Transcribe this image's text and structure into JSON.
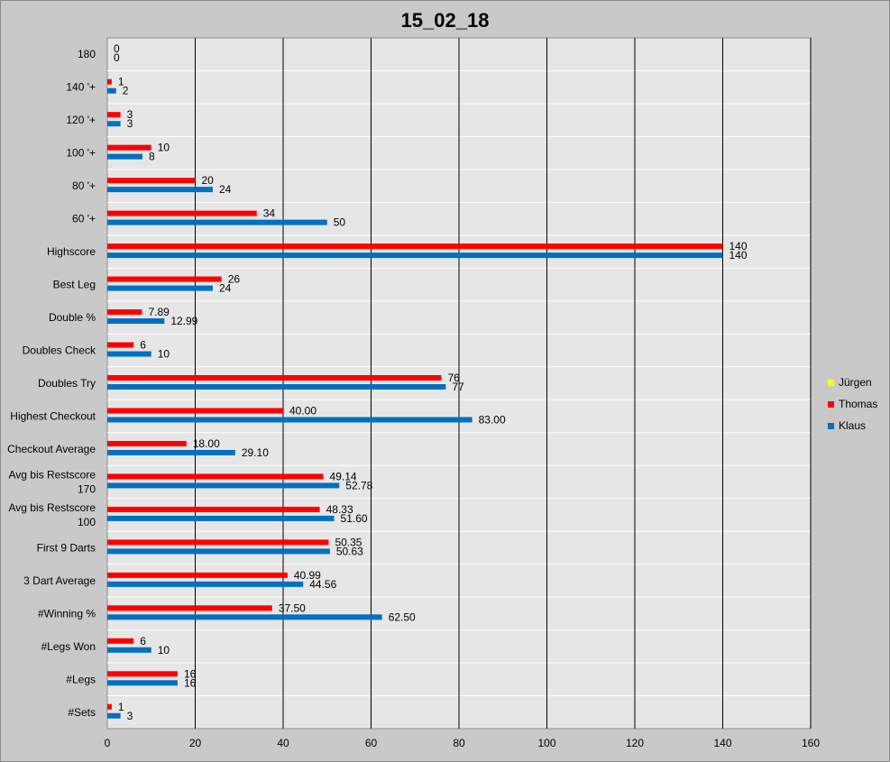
{
  "chart_data": {
    "type": "bar",
    "orientation": "horizontal",
    "title": "15_02_18",
    "categories": [
      "180",
      "140 '+",
      "120 '+",
      "100 '+",
      "80 '+",
      "60 '+",
      "Highscore",
      "Best Leg",
      "Double %",
      "Doubles Check",
      "Doubles Try",
      "Highest Checkout",
      "Checkout Average",
      "Avg bis Restscore 170",
      "Avg bis Restscore 100",
      "First 9 Darts",
      "3 Dart Average",
      "#Winning %",
      "#Legs Won",
      "#Legs",
      "#Sets"
    ],
    "series": [
      {
        "name": "Jürgen",
        "color": "#ffff00",
        "values": [
          null,
          null,
          null,
          null,
          null,
          null,
          null,
          null,
          null,
          null,
          null,
          null,
          null,
          null,
          null,
          null,
          null,
          null,
          null,
          null,
          null
        ],
        "labels": []
      },
      {
        "name": "Thomas",
        "color": "#ff0000",
        "values": [
          0,
          1,
          3,
          10,
          20,
          34,
          140,
          26,
          7.89,
          6,
          76,
          40,
          18,
          49.14,
          48.33,
          50.35,
          40.99,
          37.5,
          6,
          16,
          1
        ],
        "labels": [
          "0",
          "1",
          "3",
          "10",
          "20",
          "34",
          "140",
          "26",
          "7.89",
          "6",
          "76",
          "40.00",
          "18.00",
          "49.14",
          "48.33",
          "50.35",
          "40.99",
          "37.50",
          "6",
          "16",
          "1"
        ]
      },
      {
        "name": "Klaus",
        "color": "#0070c0",
        "values": [
          0,
          2,
          3,
          8,
          24,
          50,
          140,
          24,
          12.99,
          10,
          77,
          83,
          29.1,
          52.78,
          51.6,
          50.63,
          44.56,
          62.5,
          10,
          16,
          3
        ],
        "labels": [
          "0",
          "2",
          "3",
          "8",
          "24",
          "50",
          "140",
          "24",
          "12.99",
          "10",
          "77",
          "83.00",
          "29.10",
          "52.78",
          "51.60",
          "50.63",
          "44.56",
          "62.50",
          "10",
          "16",
          "3"
        ]
      }
    ],
    "xlim": [
      0,
      160
    ],
    "xticks": [
      "0",
      "20",
      "40",
      "60",
      "80",
      "100",
      "120",
      "140",
      "160"
    ],
    "grid": true,
    "legend_position": "right"
  }
}
